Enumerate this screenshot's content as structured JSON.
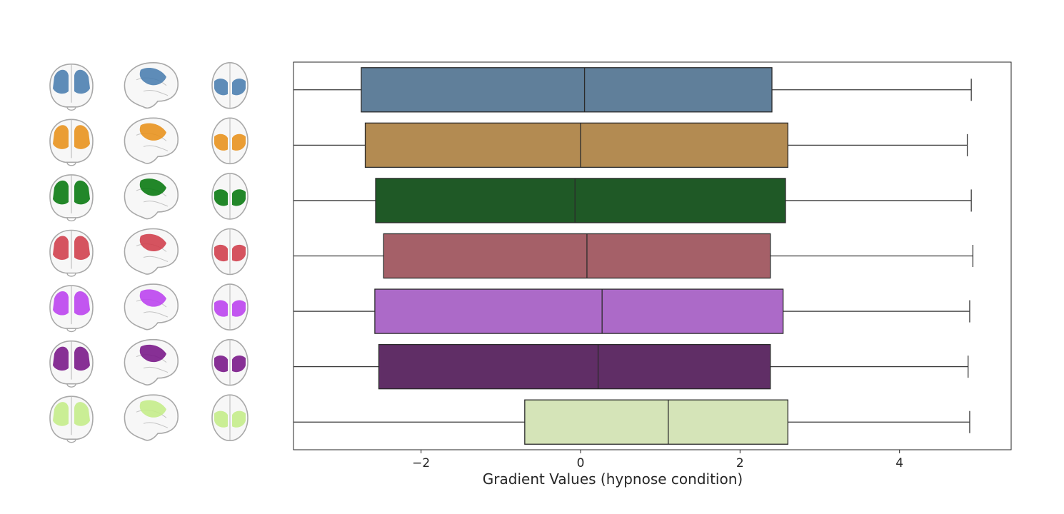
{
  "chart_data": {
    "type": "boxplot",
    "orientation": "horizontal",
    "xlabel": "Gradient Values (hypnose condition)",
    "ylabel": "",
    "xlim": [
      -3.6,
      5.4
    ],
    "xticks": [
      -2,
      0,
      2,
      4
    ],
    "xtick_labels": [
      "−2",
      "0",
      "2",
      "4"
    ],
    "grid": false,
    "series": [
      {
        "color": "#4c7fb0",
        "box_color": "#607f9a",
        "min": -3.6,
        "q1": -2.75,
        "median": 0.05,
        "q3": 2.4,
        "max": 4.9
      },
      {
        "color": "#e8921e",
        "box_color": "#b38b52",
        "min": -3.6,
        "q1": -2.7,
        "median": 0.0,
        "q3": 2.6,
        "max": 4.85
      },
      {
        "color": "#0a7a12",
        "box_color": "#1f5926",
        "min": -3.6,
        "q1": -2.57,
        "median": -0.07,
        "q3": 2.57,
        "max": 4.9
      },
      {
        "color": "#d0404e",
        "box_color": "#a56068",
        "min": -3.6,
        "q1": -2.47,
        "median": 0.08,
        "q3": 2.38,
        "max": 4.92
      },
      {
        "color": "#bb44ee",
        "box_color": "#ac6ac8",
        "min": -3.6,
        "q1": -2.58,
        "median": 0.27,
        "q3": 2.54,
        "max": 4.88
      },
      {
        "color": "#7a1a8a",
        "box_color": "#602e66",
        "min": -3.6,
        "q1": -2.53,
        "median": 0.22,
        "q3": 2.38,
        "max": 4.86
      },
      {
        "color": "#c4ec8a",
        "box_color": "#d5e4b8",
        "min": -3.6,
        "q1": -0.7,
        "median": 1.1,
        "q3": 2.6,
        "max": 4.88
      }
    ]
  }
}
